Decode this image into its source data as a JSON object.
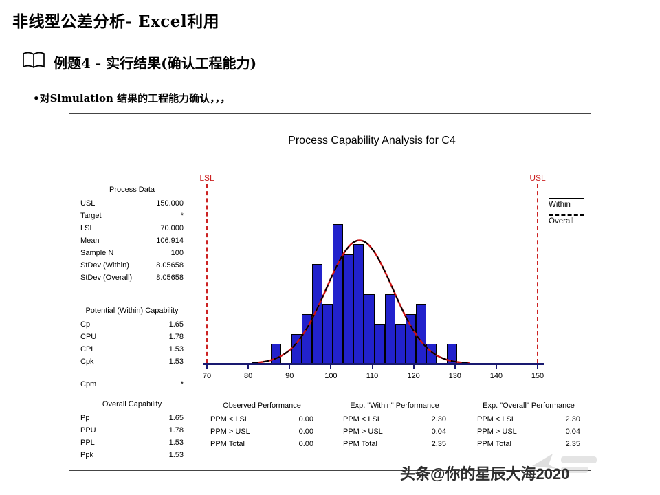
{
  "page": {
    "title": "非线型公差分析- Excel利用",
    "subtitle": "例题4 - 实行结果(确认工程能力)",
    "bullet": "•对Simulation 结果的工程能力确认，，，",
    "watermark": "头条@你的星辰大海2020"
  },
  "chart": {
    "title": "Process Capability Analysis for C4",
    "lsl_label": "LSL",
    "usl_label": "USL",
    "legend": {
      "within": "Within",
      "overall": "Overall"
    },
    "process_data": {
      "header": "Process Data",
      "rows": [
        [
          "USL",
          "150.000"
        ],
        [
          "Target",
          "*"
        ],
        [
          "LSL",
          "70.000"
        ],
        [
          "Mean",
          "106.914"
        ],
        [
          "Sample N",
          "100"
        ],
        [
          "StDev (Within)",
          "8.05658"
        ],
        [
          "StDev (Overall)",
          "8.05658"
        ]
      ]
    },
    "within_capability": {
      "header": "Potential (Within) Capability",
      "rows": [
        [
          "Cp",
          "1.65"
        ],
        [
          "CPU",
          "1.78"
        ],
        [
          "CPL",
          "1.53"
        ],
        [
          "Cpk",
          "1.53"
        ],
        [
          "Cpm",
          "*"
        ]
      ]
    },
    "overall_capability": {
      "header": "Overall Capability",
      "rows": [
        [
          "Pp",
          "1.65"
        ],
        [
          "PPU",
          "1.78"
        ],
        [
          "PPL",
          "1.53"
        ],
        [
          "Ppk",
          "1.53"
        ]
      ]
    },
    "performance_tables": [
      {
        "header": "Observed Performance",
        "rows": [
          [
            "PPM < LSL",
            "0.00"
          ],
          [
            "PPM > USL",
            "0.00"
          ],
          [
            "PPM Total",
            "0.00"
          ]
        ]
      },
      {
        "header": "Exp. \"Within\" Performance",
        "rows": [
          [
            "PPM < LSL",
            "2.30"
          ],
          [
            "PPM > USL",
            "0.04"
          ],
          [
            "PPM Total",
            "2.35"
          ]
        ]
      },
      {
        "header": "Exp. \"Overall\" Performance",
        "rows": [
          [
            "PPM < LSL",
            "2.30"
          ],
          [
            "PPM > USL",
            "0.04"
          ],
          [
            "PPM Total",
            "2.35"
          ]
        ]
      }
    ]
  },
  "chart_data": {
    "type": "bar",
    "subtype": "capability-histogram-with-normal-curves",
    "title": "Process Capability Analysis for C4",
    "xlim": [
      70,
      150
    ],
    "x_ticks": [
      70,
      80,
      90,
      100,
      110,
      120,
      130,
      140,
      150
    ],
    "lsl": 70,
    "usl": 150,
    "sample_n": 100,
    "mean": 106.914,
    "stdev_within": 8.05658,
    "stdev_overall": 8.05658,
    "bin_width": 2.5,
    "bin_centers": [
      86.75,
      89.25,
      91.75,
      94.25,
      96.75,
      99.25,
      101.75,
      104.25,
      106.75,
      109.25,
      111.75,
      114.25,
      116.75,
      119.25,
      121.75,
      124.25,
      126.75,
      129.25
    ],
    "frequencies": [
      2,
      0,
      3,
      5,
      10,
      6,
      14,
      11,
      12,
      7,
      4,
      7,
      4,
      5,
      6,
      2,
      0,
      2
    ],
    "series": [
      {
        "name": "Within",
        "style": "black-dashed-curve"
      },
      {
        "name": "Overall",
        "style": "red-dashed-curve"
      }
    ],
    "legend_position": "right",
    "bar_color": "#2222cc",
    "spec_line_color": "#cc2222",
    "grid": false
  }
}
